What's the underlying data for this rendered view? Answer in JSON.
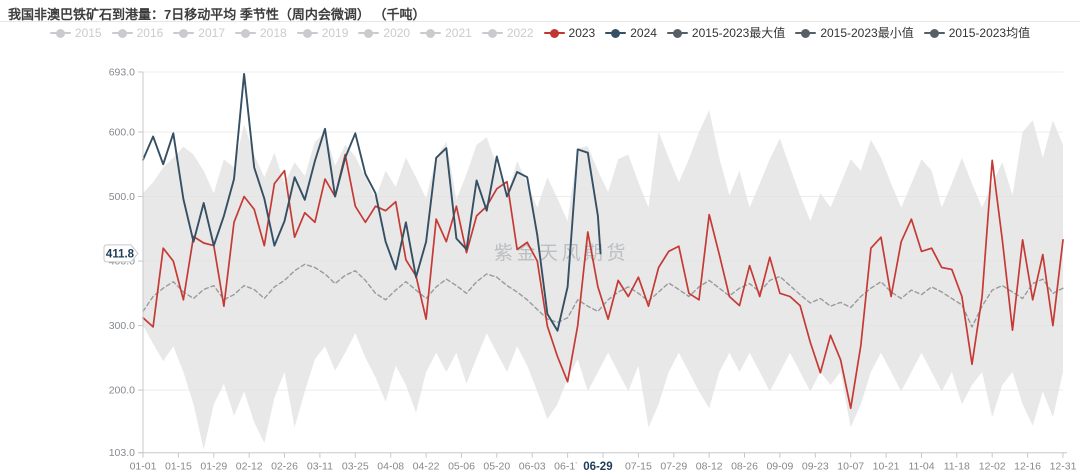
{
  "page": {
    "title": "我国非澳巴铁矿石到港量：7日移动平均 季节性（周内会微调） （千吨）",
    "watermark": "紫金天风期货"
  },
  "legend": {
    "items": [
      {
        "label": "2015",
        "color": "#c9cbcf",
        "disabled": true
      },
      {
        "label": "2016",
        "color": "#c9cbcf",
        "disabled": true
      },
      {
        "label": "2017",
        "color": "#c9cbcf",
        "disabled": true
      },
      {
        "label": "2018",
        "color": "#c9cbcf",
        "disabled": true
      },
      {
        "label": "2019",
        "color": "#c9cbcf",
        "disabled": true
      },
      {
        "label": "2020",
        "color": "#c9cbcf",
        "disabled": true
      },
      {
        "label": "2021",
        "color": "#c9cbcf",
        "disabled": true
      },
      {
        "label": "2022",
        "color": "#c9cbcf",
        "disabled": true
      },
      {
        "label": "2023",
        "color": "#c23531",
        "disabled": false
      },
      {
        "label": "2024",
        "color": "#355064",
        "disabled": false
      },
      {
        "label": "2015-2023最大值",
        "color": "#565e66",
        "disabled": false
      },
      {
        "label": "2015-2023最小值",
        "color": "#565e66",
        "disabled": false
      },
      {
        "label": "2015-2023均值",
        "color": "#565e66",
        "disabled": false
      }
    ]
  },
  "y_axis": {
    "tick_labels": [
      "693.0",
      "600.0",
      "500.0",
      "400.0",
      "300.0",
      "200.0",
      "103.0"
    ],
    "tick_values": [
      693,
      600,
      500,
      400,
      300,
      200,
      103
    ],
    "highlight": {
      "label": "411.8",
      "value": 411.8
    }
  },
  "x_axis": {
    "tick_labels": [
      "01-01",
      "01-15",
      "01-29",
      "02-12",
      "02-26",
      "03-11",
      "03-25",
      "04-08",
      "04-22",
      "05-06",
      "05-20",
      "06-03",
      "06-17",
      "07-15",
      "07-29",
      "08-12",
      "08-26",
      "09-09",
      "09-23",
      "10-07",
      "10-21",
      "11-04",
      "11-18",
      "12-02",
      "12-16",
      "12-31"
    ],
    "highlight": {
      "label": "06-29",
      "day": 180
    }
  },
  "chart_data": {
    "type": "line",
    "title": "我国非澳巴铁矿石到港量：7日移动平均 季节性（周内会微调） （千吨）",
    "unit": "千吨",
    "x_axis_type": "day-of-year (MM-DD)",
    "x_range_days": [
      0,
      364
    ],
    "ylim": [
      103.0,
      693.0
    ],
    "grid": true,
    "legend_position": "top",
    "sample_step_days": 4,
    "note": "values are estimates read from the plot at 4-day resolution; day = index*4",
    "band": {
      "name": "2015-2023历史区间",
      "top_name": "2015-2023最大值",
      "bottom_name": "2015-2023最小值",
      "color": "#e2e2e2",
      "top_values": [
        505,
        522,
        545,
        560,
        577,
        565,
        540,
        505,
        558,
        545,
        612,
        565,
        530,
        568,
        520,
        553,
        532,
        585,
        600,
        548,
        580,
        562,
        530,
        497,
        540,
        515,
        560,
        530,
        497,
        560,
        585,
        495,
        535,
        580,
        592,
        548,
        500,
        555,
        520,
        483,
        530,
        497,
        462,
        575,
        578,
        540,
        507,
        558,
        565,
        522,
        483,
        600,
        560,
        522,
        558,
        600,
        634,
        560,
        502,
        540,
        483,
        520,
        558,
        590,
        545,
        502,
        462,
        505,
        483,
        520,
        558,
        540,
        588,
        560,
        520,
        483,
        520,
        558,
        540,
        483,
        520,
        560,
        520,
        483,
        520,
        553,
        502,
        600,
        618,
        560,
        618,
        580
      ],
      "bottom_values": [
        300,
        272,
        245,
        268,
        228,
        178,
        108,
        178,
        210,
        160,
        198,
        150,
        118,
        188,
        228,
        142,
        198,
        248,
        268,
        230,
        258,
        288,
        250,
        220,
        182,
        238,
        208,
        165,
        228,
        258,
        228,
        258,
        210,
        250,
        288,
        258,
        228,
        268,
        238,
        198,
        155,
        178,
        218,
        248,
        198,
        228,
        258,
        228,
        198,
        238,
        142,
        178,
        228,
        258,
        228,
        198,
        172,
        228,
        258,
        228,
        258,
        228,
        198,
        228,
        258,
        228,
        198,
        228,
        208,
        228,
        142,
        178,
        228,
        258,
        228,
        198,
        228,
        258,
        228,
        198,
        228,
        178,
        208,
        228,
        158,
        208,
        228,
        178,
        145,
        198,
        158,
        228
      ]
    },
    "series": [
      {
        "name": "2015-2023均值",
        "style": "dashed",
        "color": "#9a9a9a",
        "values": [
          322,
          345,
          358,
          368,
          352,
          342,
          356,
          362,
          340,
          348,
          362,
          356,
          342,
          360,
          370,
          385,
          395,
          390,
          380,
          365,
          378,
          385,
          370,
          350,
          340,
          355,
          368,
          355,
          342,
          360,
          372,
          362,
          350,
          368,
          380,
          375,
          362,
          352,
          340,
          325,
          310,
          305,
          312,
          340,
          330,
          322,
          340,
          352,
          360,
          350,
          338,
          352,
          366,
          356,
          345,
          360,
          370,
          358,
          346,
          358,
          365,
          352,
          370,
          376,
          362,
          348,
          335,
          342,
          330,
          336,
          328,
          345,
          358,
          368,
          352,
          342,
          355,
          348,
          360,
          352,
          342,
          332,
          298,
          330,
          355,
          362,
          352,
          342,
          365,
          372,
          350,
          358
        ]
      },
      {
        "name": "2023",
        "style": "solid",
        "color": "#c53a35",
        "values": [
          312,
          298,
          420,
          400,
          340,
          438,
          428,
          424,
          330,
          460,
          500,
          480,
          424,
          520,
          540,
          437,
          475,
          460,
          527,
          500,
          565,
          485,
          460,
          485,
          478,
          492,
          402,
          377,
          310,
          465,
          430,
          485,
          413,
          470,
          485,
          512,
          523,
          418,
          429,
          400,
          299,
          252,
          213,
          300,
          445,
          360,
          310,
          370,
          345,
          375,
          330,
          390,
          415,
          423,
          350,
          340,
          472,
          410,
          345,
          331,
          393,
          345,
          406,
          350,
          345,
          331,
          274,
          227,
          285,
          247,
          172,
          269,
          420,
          437,
          345,
          430,
          465,
          415,
          420,
          390,
          387,
          345,
          240,
          345,
          556,
          433,
          293,
          433,
          340,
          410,
          300,
          433
        ]
      },
      {
        "name": "2024",
        "style": "solid",
        "color": "#355064",
        "days": [
          0,
          4,
          8,
          12,
          16,
          20,
          24,
          28,
          32,
          36,
          40,
          44,
          48,
          52,
          56,
          60,
          64,
          68,
          72,
          76,
          80,
          84,
          88,
          92,
          96,
          100,
          104,
          108,
          112,
          116,
          120,
          124,
          128,
          132,
          136,
          140,
          144,
          148,
          152,
          156,
          160,
          164,
          168,
          172,
          176,
          180,
          181
        ],
        "values": [
          557,
          593,
          550,
          598,
          496,
          430,
          490,
          424,
          470,
          527,
          690,
          545,
          497,
          424,
          462,
          530,
          495,
          555,
          605,
          500,
          560,
          598,
          535,
          505,
          430,
          387,
          460,
          375,
          430,
          560,
          575,
          435,
          418,
          525,
          478,
          562,
          500,
          538,
          530,
          440,
          318,
          292,
          360,
          573,
          568,
          470,
          411.8
        ],
        "last_point": {
          "date": "06-29",
          "value": 411.8
        }
      }
    ]
  }
}
